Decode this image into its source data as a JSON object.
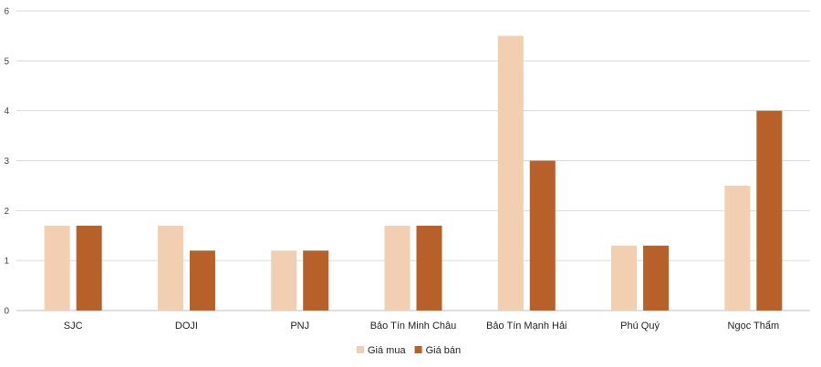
{
  "chart_data": {
    "type": "bar",
    "categories": [
      "SJC",
      "DOJI",
      "PNJ",
      "Bảo Tín Minh Châu",
      "Bảo Tín Mạnh Hải",
      "Phú Quý",
      "Ngọc Thẩm"
    ],
    "series": [
      {
        "name": "Giá mua",
        "color": "#f2cfb1",
        "values": [
          1.7,
          1.7,
          1.2,
          1.7,
          5.5,
          1.3,
          2.5
        ]
      },
      {
        "name": "Giá bán",
        "color": "#b8602a",
        "values": [
          1.7,
          1.2,
          1.2,
          1.7,
          3.0,
          1.3,
          4.0
        ]
      }
    ],
    "yticks": [
      0,
      1,
      2,
      3,
      4,
      5,
      6
    ],
    "ylim": [
      0,
      6
    ],
    "grid": true,
    "legend_position": "bottom"
  }
}
